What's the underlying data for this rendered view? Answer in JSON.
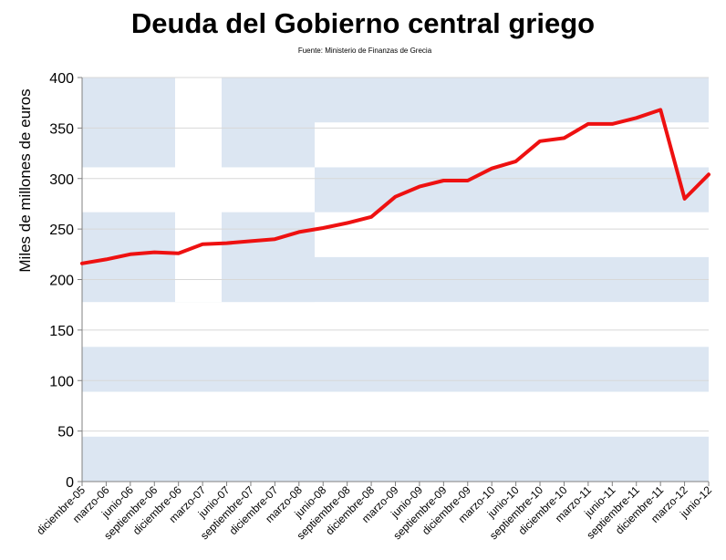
{
  "chart_data": {
    "type": "line",
    "title": "Deuda del Gobierno central griego",
    "subtitle": "Fuente: Ministerio de Finanzas de Grecia",
    "xlabel": "",
    "ylabel": "Miles de millones de euros",
    "ylim": [
      0,
      400
    ],
    "yticks": [
      0,
      50,
      100,
      150,
      200,
      250,
      300,
      350,
      400
    ],
    "categories": [
      "diciembre-05",
      "marzo-06",
      "junio-06",
      "septiembre-06",
      "diciembre-06",
      "marzo-07",
      "junio-07",
      "septiembre-07",
      "diciembre-07",
      "marzo-08",
      "junio-08",
      "septiembre-08",
      "diciembre-08",
      "marzo-09",
      "junio-09",
      "septiembre-09",
      "diciembre-09",
      "marzo-10",
      "junio-10",
      "septiembre-10",
      "diciembre-10",
      "marzo-11",
      "junio-11",
      "septiembre-11",
      "diciembre-11",
      "marzo-12",
      "junio-12"
    ],
    "series": [
      {
        "values": [
          216,
          220,
          225,
          227,
          226,
          235,
          236,
          238,
          240,
          247,
          251,
          256,
          262,
          282,
          292,
          298,
          298,
          310,
          317,
          337,
          340,
          354,
          354,
          360,
          368,
          280,
          304
        ],
        "color": "#ee1111"
      }
    ],
    "grid": true,
    "legend": "none",
    "background": "greek-flag",
    "colors": {
      "flag_blue": "#dce6f2",
      "flag_white": "#ffffff",
      "axis": "#808080",
      "gridline": "#d8d8d8",
      "line": "#ee1111"
    }
  }
}
